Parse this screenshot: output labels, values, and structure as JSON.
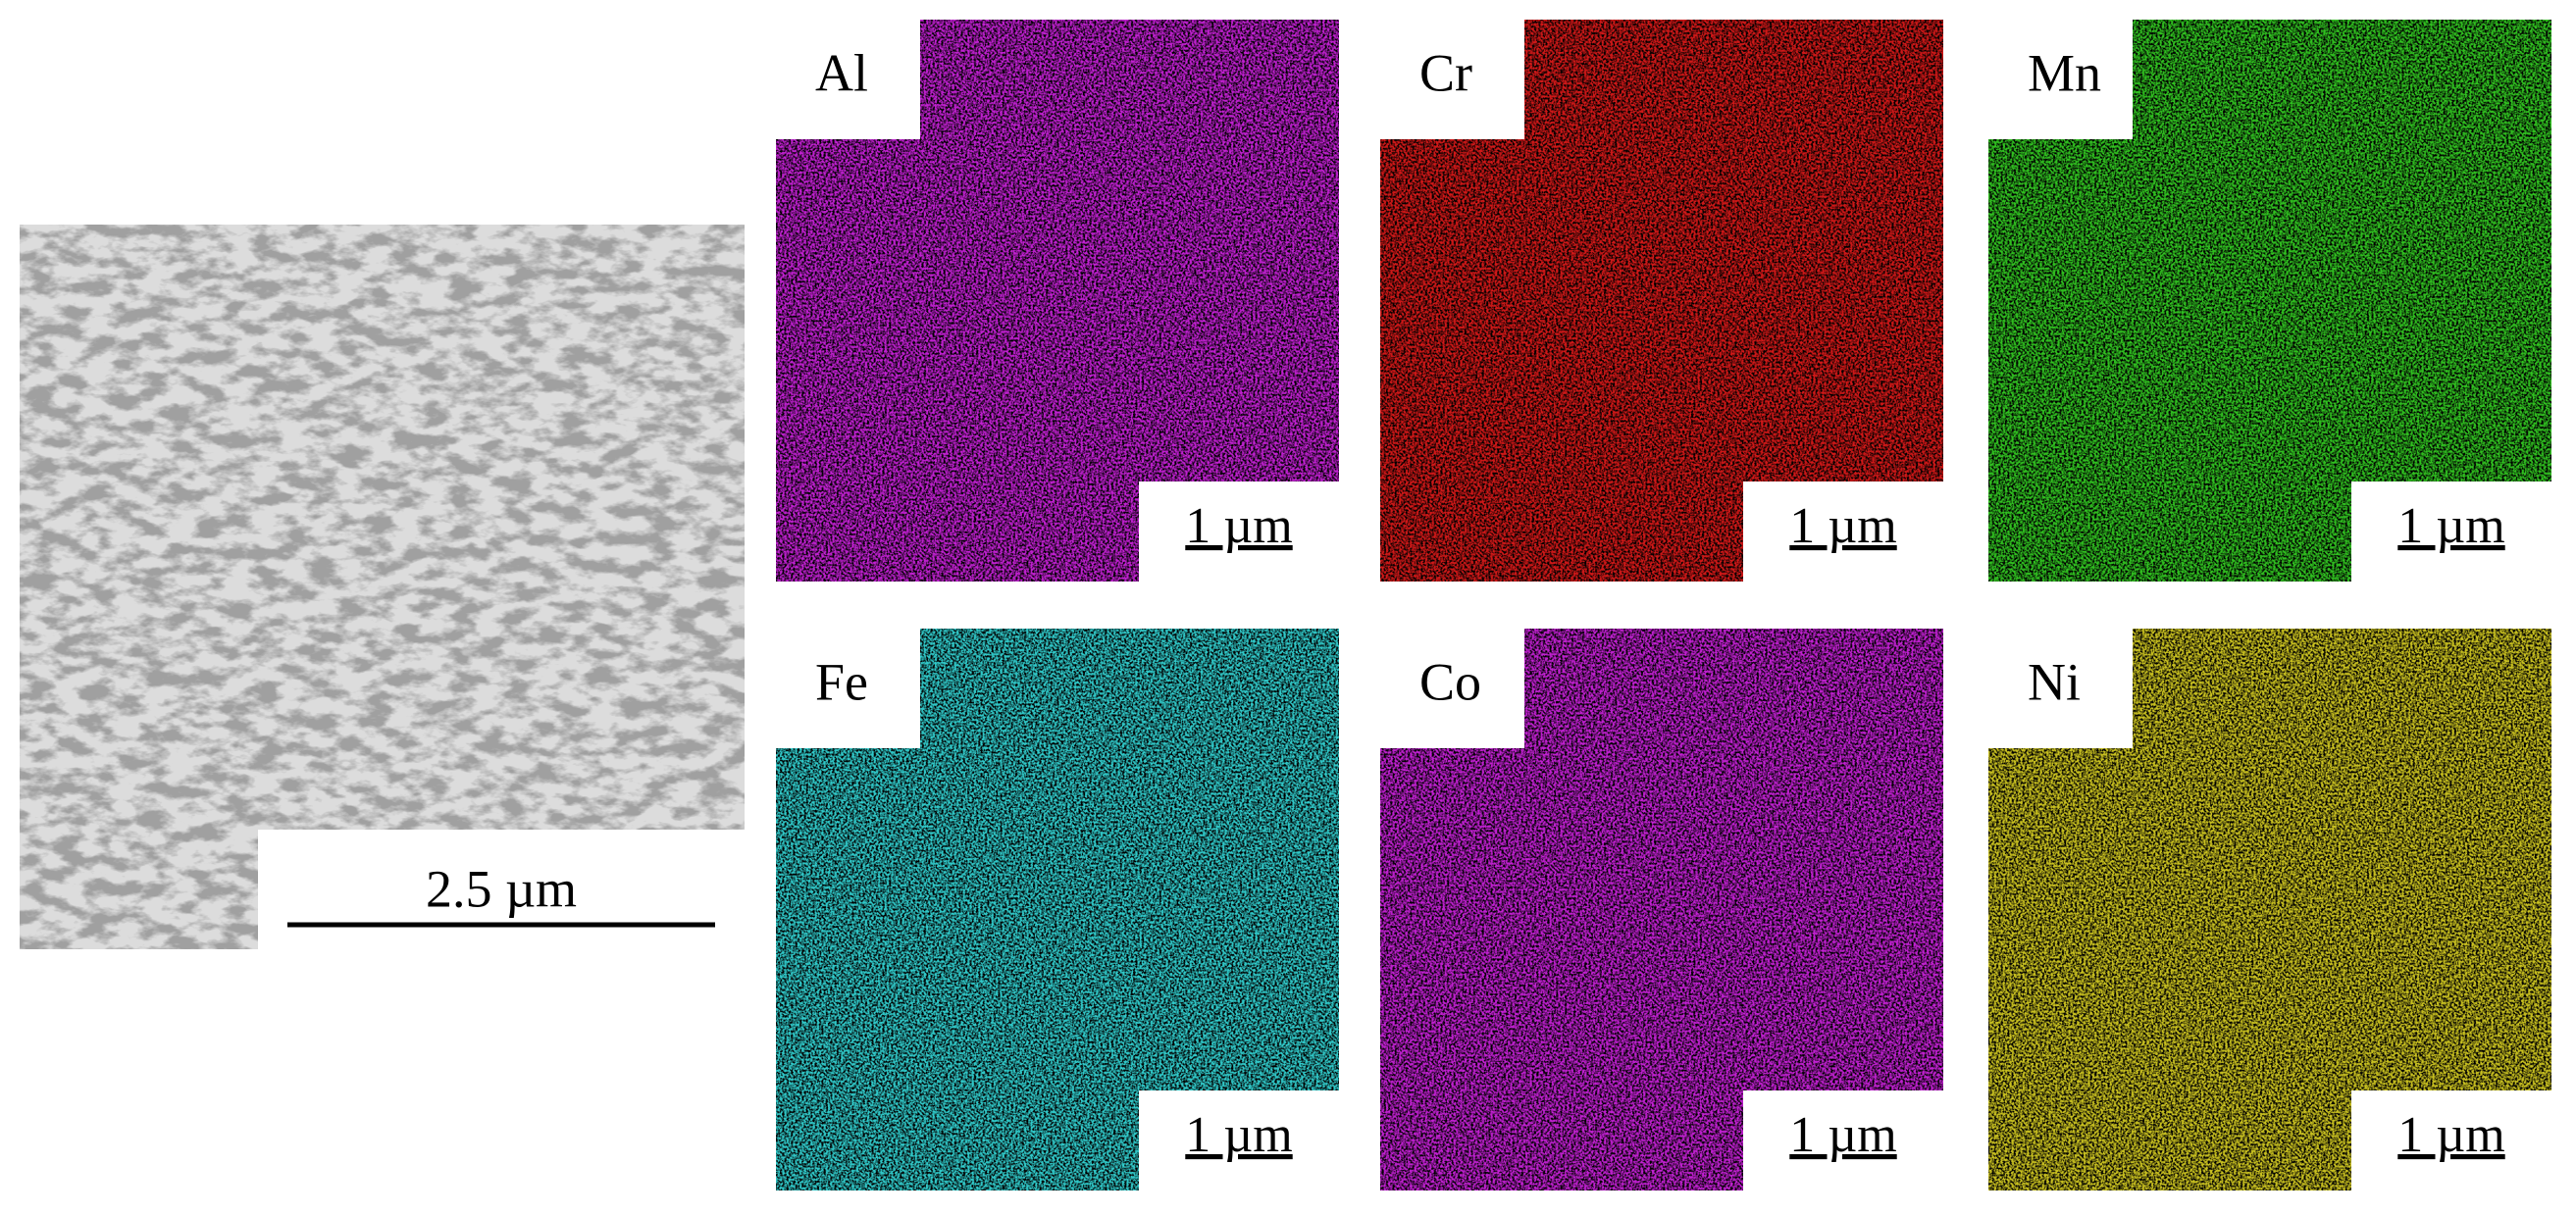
{
  "sem": {
    "scale_bar": "2.5 µm"
  },
  "maps": [
    {
      "label": "Al",
      "color": "#c020d0",
      "scale_bar": "1 µm"
    },
    {
      "label": "Cr",
      "color": "#d01818",
      "scale_bar": "1 µm"
    },
    {
      "label": "Mn",
      "color": "#30c020",
      "scale_bar": "1 µm"
    },
    {
      "label": "Fe",
      "color": "#30c8c8",
      "scale_bar": "1 µm"
    },
    {
      "label": "Co",
      "color": "#c020d0",
      "scale_bar": "1 µm"
    },
    {
      "label": "Ni",
      "color": "#c8c020",
      "scale_bar": "1 µm"
    }
  ]
}
